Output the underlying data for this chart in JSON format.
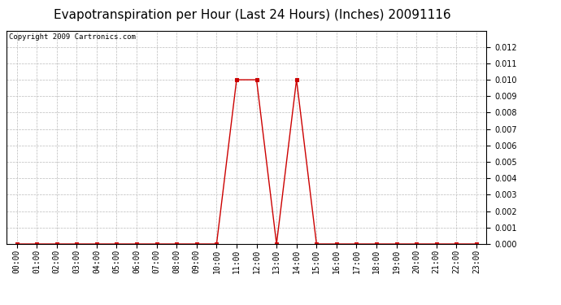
{
  "title": "Evapotranspiration per Hour (Last 24 Hours) (Inches) 20091116",
  "copyright": "Copyright 2009 Cartronics.com",
  "hours": [
    "00:00",
    "01:00",
    "02:00",
    "03:00",
    "04:00",
    "05:00",
    "06:00",
    "07:00",
    "08:00",
    "09:00",
    "10:00",
    "11:00",
    "12:00",
    "13:00",
    "14:00",
    "15:00",
    "16:00",
    "17:00",
    "18:00",
    "19:00",
    "20:00",
    "21:00",
    "22:00",
    "23:00"
  ],
  "values": [
    0.0,
    0.0,
    0.0,
    0.0,
    0.0,
    0.0,
    0.0,
    0.0,
    0.0,
    0.0,
    0.0,
    0.01,
    0.01,
    0.0,
    0.01,
    0.0,
    0.0,
    0.0,
    0.0,
    0.0,
    0.0,
    0.0,
    0.0,
    0.0
  ],
  "line_color": "#cc0000",
  "marker": "s",
  "marker_size": 3,
  "ylim": [
    0.0,
    0.013
  ],
  "yticks": [
    0.0,
    0.001,
    0.002,
    0.003,
    0.004,
    0.005,
    0.006,
    0.007,
    0.008,
    0.009,
    0.01,
    0.011,
    0.012
  ],
  "background_color": "#ffffff",
  "grid_color": "#bbbbbb",
  "title_fontsize": 11,
  "copyright_fontsize": 6.5,
  "tick_fontsize": 7
}
